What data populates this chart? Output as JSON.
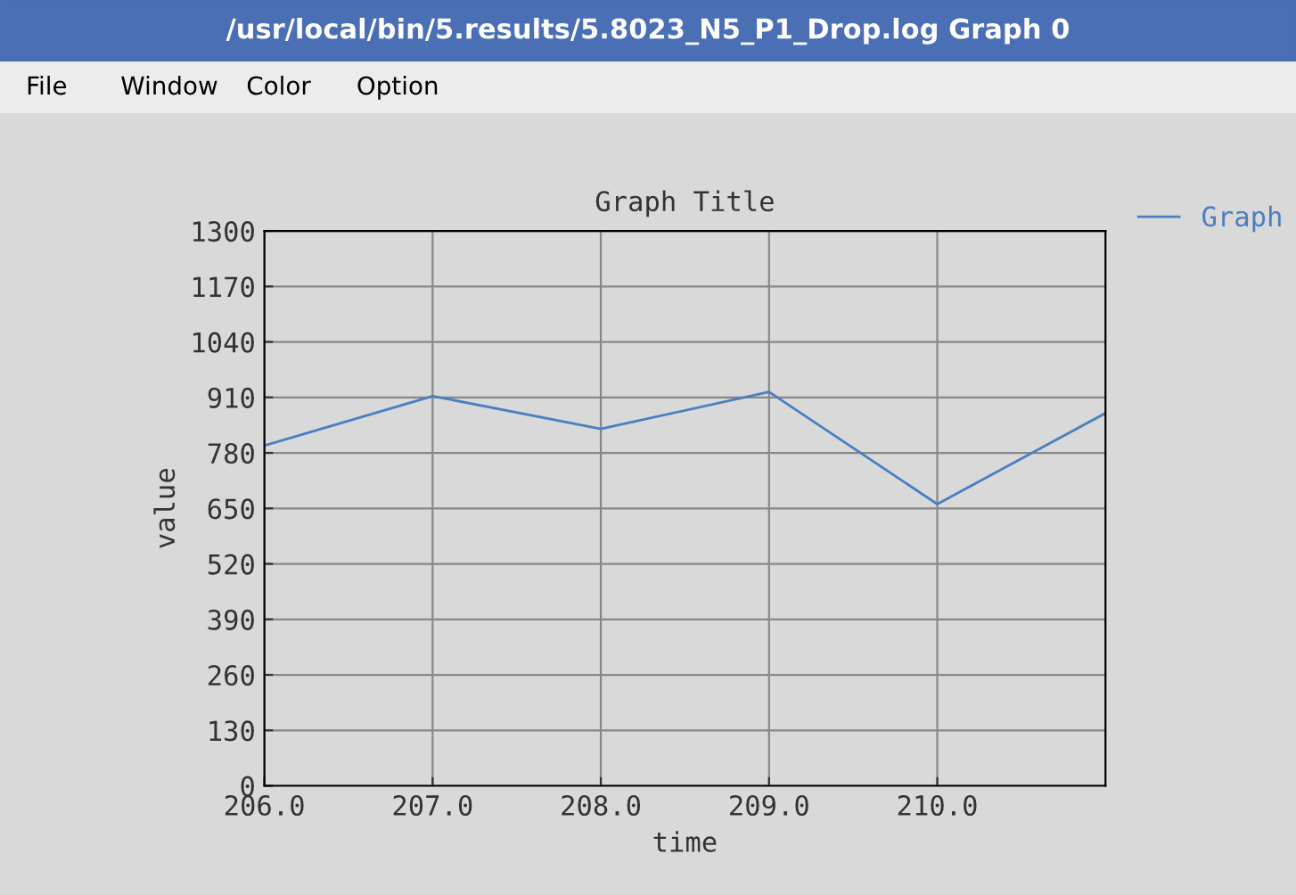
{
  "chart_data": {
    "type": "line",
    "title": "Graph Title",
    "xlabel": "time",
    "ylabel": "value",
    "annotations": [
      "/usr/local/bin/5.results/5.8023_N5_P1_Drop.log Graph 0",
      "File",
      "Window",
      "Color",
      "Option"
    ],
    "x": [
      206,
      207,
      208,
      209,
      210,
      211
    ],
    "series": [
      {
        "name": "Graph",
        "color": "#4a7fc0",
        "values": [
          797,
          913,
          836,
          923,
          660,
          873
        ]
      }
    ],
    "xlim": [
      206,
      211
    ],
    "xticks": [
      {
        "value": 206,
        "label": "206.0"
      },
      {
        "value": 207,
        "label": "207.0"
      },
      {
        "value": 208,
        "label": "208.0"
      },
      {
        "value": 209,
        "label": "209.0"
      },
      {
        "value": 210,
        "label": "210.0"
      }
    ],
    "ylim": [
      0,
      1300
    ],
    "yticks": [
      0,
      130,
      260,
      390,
      520,
      650,
      780,
      910,
      1040,
      1170,
      1300
    ],
    "grid": true,
    "legend": "top right",
    "marker": "none",
    "line_style": "solid"
  }
}
